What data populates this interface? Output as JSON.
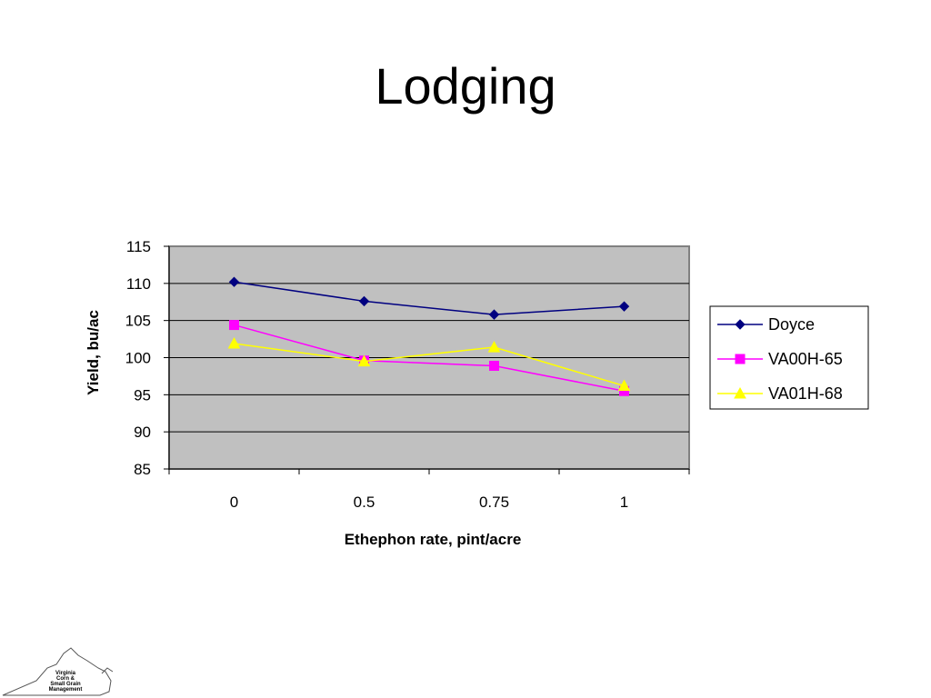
{
  "slide": {
    "title": "Lodging"
  },
  "logo": {
    "text_lines": [
      "Virginia",
      "Corn &",
      "Small Grain",
      "Management"
    ]
  },
  "chart_data": {
    "type": "line",
    "title": "",
    "xlabel": "Ethephon rate, pint/acre",
    "ylabel": "Yield, bu/ac",
    "categories": [
      "0",
      "0.5",
      "0.75",
      "1"
    ],
    "ylim": [
      85,
      115
    ],
    "yticks": [
      85,
      90,
      95,
      100,
      105,
      110,
      115
    ],
    "grid": true,
    "plot_background": "#c0c0c0",
    "legend": "right",
    "series": [
      {
        "name": "Doyce",
        "values": [
          110.2,
          107.6,
          105.8,
          106.9
        ],
        "color": "#000080",
        "marker": "diamond"
      },
      {
        "name": "VA00H-65",
        "values": [
          104.4,
          99.6,
          98.9,
          95.5
        ],
        "color": "#ff00ff",
        "marker": "square"
      },
      {
        "name": "VA01H-68",
        "values": [
          101.9,
          99.5,
          101.4,
          96.2
        ],
        "color": "#ffff00",
        "marker": "triangle"
      }
    ]
  }
}
